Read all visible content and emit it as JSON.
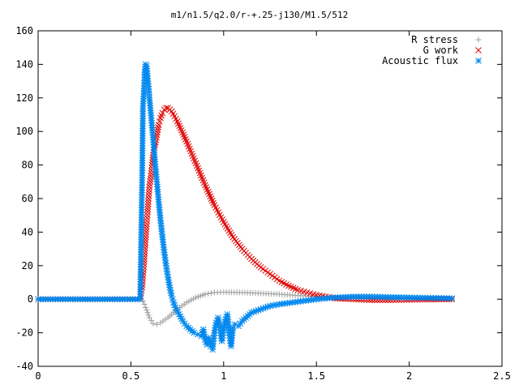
{
  "chart_data": {
    "type": "scatter",
    "title": "m1/n1.5/q2.0/r-+.25-j130/M1.5/512",
    "xlabel": "",
    "ylabel": "",
    "xlim": [
      0,
      2.5
    ],
    "ylim": [
      -40,
      160
    ],
    "xticks": [
      "0",
      "0.5",
      "1",
      "1.5",
      "2",
      "2.5"
    ],
    "yticks": [
      "-40",
      "-20",
      "0",
      "20",
      "40",
      "60",
      "80",
      "100",
      "120",
      "140",
      "160"
    ],
    "grid": false,
    "legend_position": "top-right",
    "series": [
      {
        "name": "R stress",
        "marker": "plus",
        "color": "#a0a0a0",
        "points": [
          [
            0.0,
            0
          ],
          [
            0.2,
            0
          ],
          [
            0.4,
            0
          ],
          [
            0.55,
            0
          ],
          [
            0.565,
            -1
          ],
          [
            0.58,
            -5
          ],
          [
            0.6,
            -11
          ],
          [
            0.62,
            -14.5
          ],
          [
            0.64,
            -15
          ],
          [
            0.66,
            -14
          ],
          [
            0.7,
            -11
          ],
          [
            0.75,
            -6
          ],
          [
            0.8,
            -2
          ],
          [
            0.85,
            1
          ],
          [
            0.9,
            3
          ],
          [
            0.95,
            4
          ],
          [
            1.0,
            4.2
          ],
          [
            1.1,
            4
          ],
          [
            1.2,
            3.5
          ],
          [
            1.3,
            3
          ],
          [
            1.4,
            2.2
          ],
          [
            1.5,
            1.5
          ],
          [
            1.6,
            1
          ],
          [
            1.7,
            0.5
          ],
          [
            1.8,
            0.3
          ],
          [
            2.0,
            0.1
          ],
          [
            2.23,
            0
          ]
        ]
      },
      {
        "name": "G work",
        "marker": "cross",
        "color": "#e00000",
        "points": [
          [
            0.0,
            0
          ],
          [
            0.2,
            0
          ],
          [
            0.4,
            0
          ],
          [
            0.55,
            0
          ],
          [
            0.56,
            7
          ],
          [
            0.565,
            14
          ],
          [
            0.57,
            21
          ],
          [
            0.575,
            29
          ],
          [
            0.58,
            37
          ],
          [
            0.585,
            45
          ],
          [
            0.59,
            52
          ],
          [
            0.595,
            60
          ],
          [
            0.6,
            67
          ],
          [
            0.61,
            75
          ],
          [
            0.615,
            80
          ],
          [
            0.62,
            86
          ],
          [
            0.63,
            92
          ],
          [
            0.64,
            98
          ],
          [
            0.65,
            104
          ],
          [
            0.66,
            108
          ],
          [
            0.67,
            111
          ],
          [
            0.68,
            113
          ],
          [
            0.69,
            114
          ],
          [
            0.7,
            114
          ],
          [
            0.72,
            112
          ],
          [
            0.75,
            106
          ],
          [
            0.8,
            94
          ],
          [
            0.85,
            81
          ],
          [
            0.9,
            68
          ],
          [
            0.95,
            56
          ],
          [
            1.0,
            46
          ],
          [
            1.05,
            37
          ],
          [
            1.1,
            30
          ],
          [
            1.15,
            24
          ],
          [
            1.2,
            19
          ],
          [
            1.25,
            15
          ],
          [
            1.3,
            11
          ],
          [
            1.35,
            8
          ],
          [
            1.4,
            5.5
          ],
          [
            1.45,
            4
          ],
          [
            1.5,
            2.5
          ],
          [
            1.55,
            1.5
          ],
          [
            1.6,
            0.5
          ],
          [
            1.7,
            0
          ],
          [
            1.8,
            -0.5
          ],
          [
            1.9,
            -0.5
          ],
          [
            2.0,
            -0.3
          ],
          [
            2.1,
            -0.1
          ],
          [
            2.23,
            0
          ]
        ]
      },
      {
        "name": "Acoustic flux",
        "marker": "star",
        "color": "#0088ee",
        "points": [
          [
            0.0,
            0
          ],
          [
            0.2,
            0
          ],
          [
            0.4,
            0
          ],
          [
            0.55,
            0
          ],
          [
            0.56,
            68
          ],
          [
            0.565,
            115
          ],
          [
            0.57,
            124
          ],
          [
            0.575,
            137
          ],
          [
            0.58,
            140
          ],
          [
            0.585,
            139
          ],
          [
            0.59,
            133
          ],
          [
            0.595,
            127
          ],
          [
            0.6,
            120
          ],
          [
            0.61,
            108
          ],
          [
            0.62,
            95
          ],
          [
            0.63,
            82
          ],
          [
            0.64,
            70
          ],
          [
            0.65,
            58
          ],
          [
            0.66,
            47
          ],
          [
            0.67,
            37
          ],
          [
            0.68,
            28
          ],
          [
            0.69,
            20
          ],
          [
            0.7,
            13
          ],
          [
            0.71,
            7
          ],
          [
            0.72,
            2
          ],
          [
            0.73,
            -2
          ],
          [
            0.74,
            -5
          ],
          [
            0.76,
            -9
          ],
          [
            0.78,
            -13
          ],
          [
            0.8,
            -16
          ],
          [
            0.82,
            -18
          ],
          [
            0.84,
            -20
          ],
          [
            0.86,
            -21
          ],
          [
            0.88,
            -22
          ],
          [
            0.89,
            -18
          ],
          [
            0.9,
            -24
          ],
          [
            0.91,
            -27
          ],
          [
            0.92,
            -23
          ],
          [
            0.93,
            -28
          ],
          [
            0.94,
            -30
          ],
          [
            0.95,
            -20
          ],
          [
            0.96,
            -14
          ],
          [
            0.97,
            -11
          ],
          [
            0.98,
            -17
          ],
          [
            0.99,
            -25
          ],
          [
            1.0,
            -18
          ],
          [
            1.01,
            -12
          ],
          [
            1.02,
            -9
          ],
          [
            1.03,
            -20
          ],
          [
            1.04,
            -28
          ],
          [
            1.05,
            -17
          ],
          [
            1.06,
            -15
          ],
          [
            1.08,
            -16
          ],
          [
            1.1,
            -13
          ],
          [
            1.13,
            -10
          ],
          [
            1.15,
            -8
          ],
          [
            1.2,
            -6
          ],
          [
            1.25,
            -4
          ],
          [
            1.3,
            -3
          ],
          [
            1.4,
            -1.5
          ],
          [
            1.5,
            0
          ],
          [
            1.6,
            1
          ],
          [
            1.7,
            1.5
          ],
          [
            1.8,
            1.5
          ],
          [
            1.9,
            1.2
          ],
          [
            2.0,
            1
          ],
          [
            2.1,
            0.8
          ],
          [
            2.23,
            0.5
          ]
        ]
      }
    ]
  }
}
